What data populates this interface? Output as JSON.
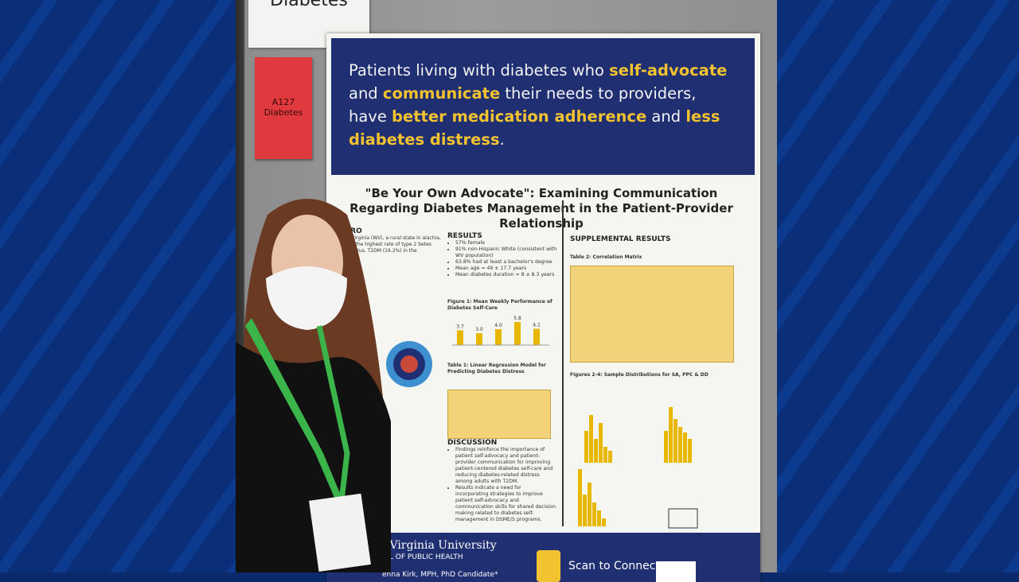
{
  "sign": "Diabetes",
  "note": {
    "code": "A127",
    "topic": "Diabetes"
  },
  "poster": {
    "banner": [
      {
        "text": "Patients living with diabetes who ",
        "bold": false
      },
      {
        "text": "self-advocate",
        "bold": true
      },
      {
        "text": " and ",
        "bold": false
      },
      {
        "text": "communicate",
        "bold": true
      },
      {
        "text": " their needs to providers, have ",
        "bold": false
      },
      {
        "text": "better medication adherence",
        "bold": true
      },
      {
        "text": " and ",
        "bold": false
      },
      {
        "text": "less diabetes distress",
        "bold": true
      },
      {
        "text": ".",
        "bold": false
      }
    ],
    "title": "\"Be Your Own Advocate\": Examining Communication Regarding Diabetes Management in the Patient-Provider Relationship",
    "intro": {
      "heading": "TRO",
      "text": "st Virginia (WV), a rural state in alachia, has the highest rate of type 2 betes mellitus, T2DM (16.2%) in the"
    },
    "results": {
      "heading": "RESULTS",
      "bullets": [
        "57% female",
        "91% non-Hispanic White (consistent with WV population)",
        "63.8% had at least a bachelor's degree",
        "Mean age = 49 ± 17.7 years",
        "Mean diabetes duration = 8 ± 8.3 years"
      ]
    },
    "figure1": {
      "title": "Figure 1: Mean Weekly Performance of Diabetes Self-Care",
      "values": [
        3.7,
        3.0,
        4.0,
        5.8,
        4.1
      ],
      "value_labels": [
        "3.7",
        "3.0",
        "4.0",
        "5.8",
        "4.1"
      ]
    },
    "table1": {
      "title": "Table 1: Linear Regression Model for Predicting Diabetes Distress"
    },
    "discussion": {
      "heading": "DISCUSSION",
      "bullets": [
        "Findings reinforce the importance of patient self-advocacy and patient-provider communication for improving patient-centered diabetes self-care and reducing diabetes-related distress among adults with T2DM.",
        "Results indicate a need for incorporating strategies to improve patient self-advocacy and communication skills for shared decision making related to diabetes self-management in DSME/S programs."
      ]
    },
    "supplemental": {
      "heading": "SUPPLEMENTAL RESULTS",
      "table2": "Table 2: Correlation Matrix",
      "figures": "Figures 2-4: Sample Distributions for SA, PPC & DD"
    },
    "footer": {
      "university": "est Virginia University",
      "school": "HOOL OF PUBLIC HEALTH",
      "author": "enna Kirk, MPH, PhD Candidate*",
      "scan": "Scan to Connect"
    }
  }
}
